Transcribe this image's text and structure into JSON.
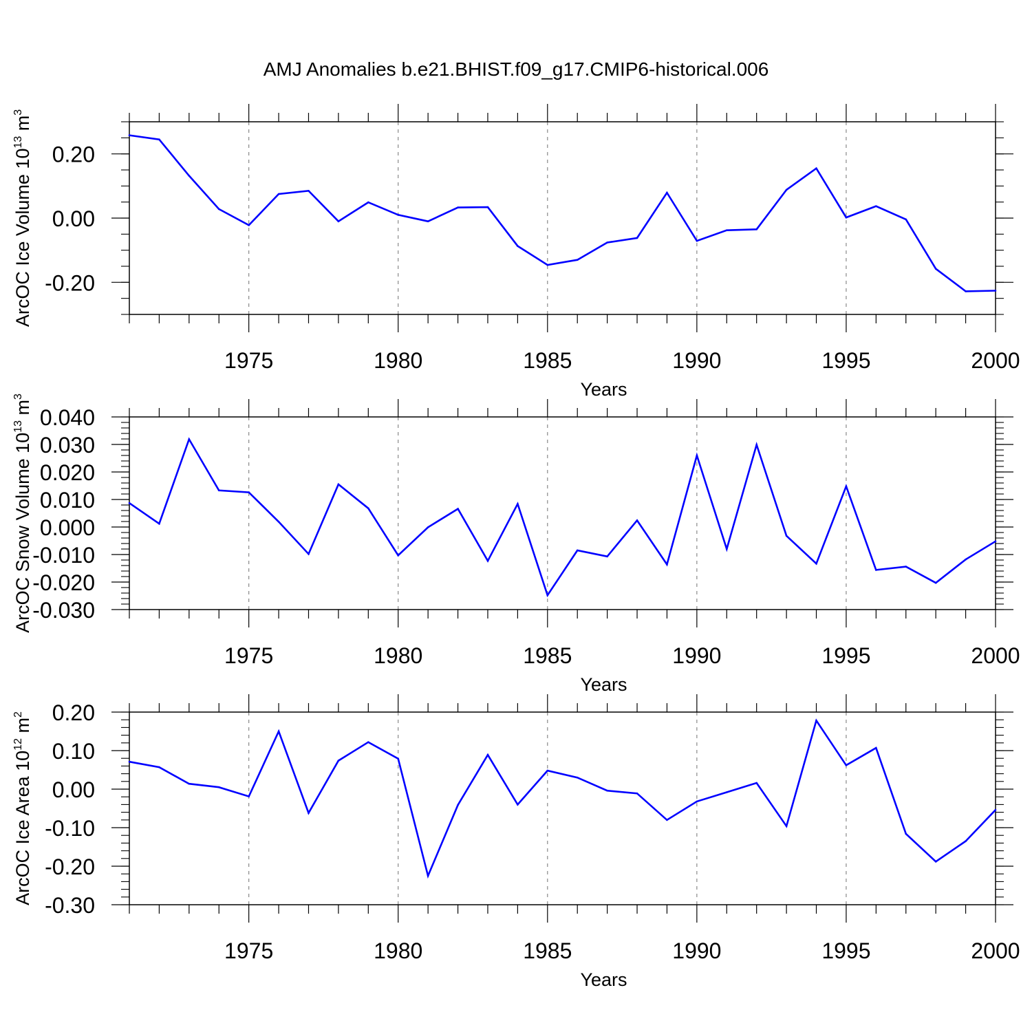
{
  "title": "AMJ Anomalies b.e21.BHIST.f09_g17.CMIP6-historical.006",
  "colors": {
    "line": "#0000ff",
    "axis": "#000000",
    "grid": "#888888"
  },
  "chart_data": [
    {
      "type": "line",
      "ylabel": {
        "text": "ArcOC Ice Volume 10",
        "sup": "13",
        "unit": " m",
        "unit_sup": "3"
      },
      "xlabel": "Years",
      "xlim": [
        1971,
        2000
      ],
      "ylim": [
        -0.3,
        0.3
      ],
      "xticks": [
        1975,
        1980,
        1985,
        1990,
        1995,
        2000
      ],
      "yticks": [
        -0.2,
        0.0,
        0.2
      ],
      "ytick_labels": [
        "-0.20",
        "0.00",
        "0.20"
      ],
      "yminor_step": 0.05,
      "series": [
        {
          "name": "ArcOC Ice Volume",
          "x": [
            1971,
            1972,
            1973,
            1974,
            1975,
            1976,
            1977,
            1978,
            1979,
            1980,
            1981,
            1982,
            1983,
            1984,
            1985,
            1986,
            1987,
            1988,
            1989,
            1990,
            1991,
            1992,
            1993,
            1994,
            1995,
            1996,
            1997,
            1998,
            1999,
            2000
          ],
          "values": [
            0.258,
            0.245,
            0.132,
            0.028,
            -0.022,
            0.075,
            0.085,
            -0.01,
            0.049,
            0.01,
            -0.01,
            0.033,
            0.034,
            -0.087,
            -0.146,
            -0.13,
            -0.076,
            -0.062,
            0.079,
            -0.071,
            -0.038,
            -0.035,
            0.088,
            0.155,
            0.002,
            0.037,
            -0.004,
            -0.158,
            -0.228,
            -0.226
          ]
        }
      ]
    },
    {
      "type": "line",
      "ylabel": {
        "text": "ArcOC Snow Volume 10",
        "sup": "13",
        "unit": " m",
        "unit_sup": "3"
      },
      "xlabel": "Years",
      "xlim": [
        1971,
        2000
      ],
      "ylim": [
        -0.03,
        0.04
      ],
      "xticks": [
        1975,
        1980,
        1985,
        1990,
        1995,
        2000
      ],
      "yticks": [
        -0.03,
        -0.02,
        -0.01,
        0.0,
        0.01,
        0.02,
        0.03,
        0.04
      ],
      "ytick_labels": [
        "-0.030",
        "-0.020",
        "-0.010",
        "0.000",
        "0.010",
        "0.020",
        "0.030",
        "0.040"
      ],
      "yminor_step": 0.002,
      "series": [
        {
          "name": "ArcOC Snow Volume",
          "x": [
            1971,
            1972,
            1973,
            1974,
            1975,
            1976,
            1977,
            1978,
            1979,
            1980,
            1981,
            1982,
            1983,
            1984,
            1985,
            1986,
            1987,
            1988,
            1989,
            1990,
            1991,
            1992,
            1993,
            1994,
            1995,
            1996,
            1997,
            1998,
            1999,
            2000
          ],
          "values": [
            0.0087,
            0.0012,
            0.0319,
            0.0133,
            0.0126,
            0.0019,
            -0.0098,
            0.0155,
            0.0068,
            -0.0103,
            -0.0001,
            0.0066,
            -0.0123,
            0.0084,
            -0.0248,
            -0.0085,
            -0.0107,
            0.0024,
            -0.0136,
            0.026,
            -0.008,
            0.0299,
            -0.0032,
            -0.0133,
            0.0148,
            -0.0156,
            -0.0144,
            -0.0203,
            -0.0118,
            -0.0052
          ]
        }
      ]
    },
    {
      "type": "line",
      "ylabel": {
        "text": "ArcOC Ice Area 10",
        "sup": "12",
        "unit": " m",
        "unit_sup": "2"
      },
      "xlabel": "Years",
      "xlim": [
        1971,
        2000
      ],
      "ylim": [
        -0.3,
        0.2
      ],
      "xticks": [
        1975,
        1980,
        1985,
        1990,
        1995,
        2000
      ],
      "yticks": [
        -0.3,
        -0.2,
        -0.1,
        0.0,
        0.1,
        0.2
      ],
      "ytick_labels": [
        "-0.30",
        "-0.20",
        "-0.10",
        "0.00",
        "0.10",
        "0.20"
      ],
      "yminor_step": 0.02,
      "series": [
        {
          "name": "ArcOC Ice Area",
          "x": [
            1971,
            1972,
            1973,
            1974,
            1975,
            1976,
            1977,
            1978,
            1979,
            1980,
            1981,
            1982,
            1983,
            1984,
            1985,
            1986,
            1987,
            1988,
            1989,
            1990,
            1991,
            1992,
            1993,
            1994,
            1995,
            1996,
            1997,
            1998,
            1999,
            2000
          ],
          "values": [
            0.071,
            0.057,
            0.014,
            0.005,
            -0.019,
            0.15,
            -0.062,
            0.074,
            0.122,
            0.079,
            -0.225,
            -0.041,
            0.089,
            -0.04,
            0.048,
            0.03,
            -0.004,
            -0.011,
            -0.08,
            -0.032,
            -0.008,
            0.016,
            -0.096,
            0.178,
            0.062,
            0.107,
            -0.116,
            -0.188,
            -0.135,
            -0.054
          ]
        }
      ]
    }
  ]
}
